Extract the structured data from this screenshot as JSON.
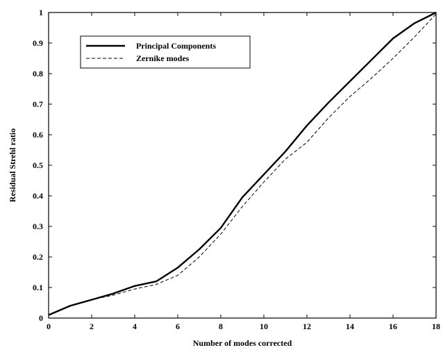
{
  "chart_data": {
    "type": "line",
    "title": "",
    "xlabel": "Number of modes corrected",
    "ylabel": "Residual Strehl ratio",
    "xlim": [
      0,
      18
    ],
    "ylim": [
      0,
      1
    ],
    "xticks": [
      0,
      2,
      4,
      6,
      8,
      10,
      12,
      14,
      16,
      18
    ],
    "xtick_labels": [
      "0",
      "2",
      "4",
      "6",
      "8",
      "10",
      "12",
      "14",
      "16",
      "18"
    ],
    "yticks": [
      0,
      0.1,
      0.2,
      0.3,
      0.4,
      0.5,
      0.6,
      0.7,
      0.8,
      0.9,
      1
    ],
    "ytick_labels": [
      "0",
      "0.1",
      "0.2",
      "0.3",
      "0.4",
      "0.5",
      "0.6",
      "0.7",
      "0.8",
      "0.9",
      "1"
    ],
    "grid": false,
    "legend_position": "top-left",
    "series": [
      {
        "name": "Principal Components",
        "style": "solid",
        "color": "#000000",
        "x": [
          0,
          1,
          2,
          3,
          4,
          5,
          6,
          7,
          8,
          9,
          10,
          11,
          12,
          13,
          14,
          15,
          16,
          17,
          18
        ],
        "y": [
          0.01,
          0.04,
          0.06,
          0.08,
          0.105,
          0.12,
          0.165,
          0.225,
          0.295,
          0.395,
          0.47,
          0.545,
          0.63,
          0.705,
          0.775,
          0.845,
          0.915,
          0.965,
          1.0
        ]
      },
      {
        "name": "Zernike modes",
        "style": "dashed",
        "color": "#000000",
        "x": [
          0,
          1,
          2,
          3,
          4,
          5,
          6,
          7,
          8,
          9,
          10,
          11,
          12,
          13,
          14,
          15,
          16,
          17,
          18
        ],
        "y": [
          0.01,
          0.04,
          0.06,
          0.075,
          0.095,
          0.11,
          0.14,
          0.2,
          0.275,
          0.365,
          0.445,
          0.52,
          0.575,
          0.655,
          0.725,
          0.785,
          0.85,
          0.92,
          0.995
        ]
      }
    ]
  }
}
